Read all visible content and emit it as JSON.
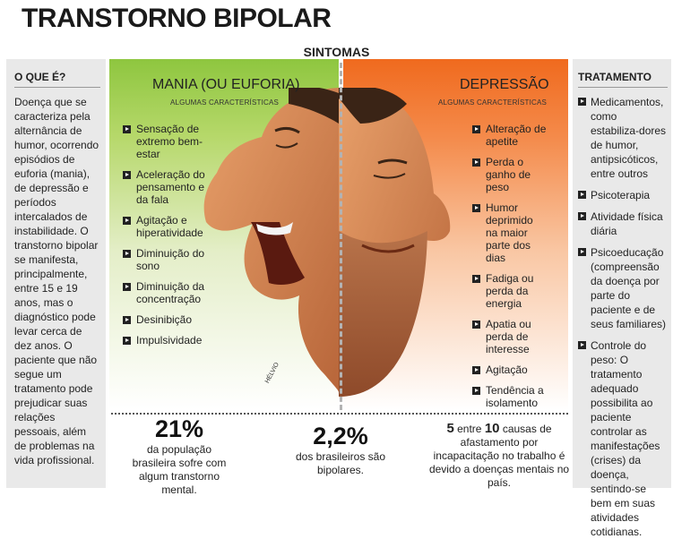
{
  "title": "TRANSTORNO BIPOLAR",
  "sintomas_label": "SINTOMAS",
  "left_panel": {
    "heading": "O QUE É?",
    "text": "Doença que se caracteriza pela alternância de humor, ocorrendo episódios de euforia (mania), de depressão e períodos intercalados de instabilidade. O transtorno bipolar se manifesta, principalmente, entre 15 e 19 anos, mas o diagnóstico pode levar cerca de dez anos. O paciente que não segue um tratamento pode prejudicar suas relações pessoais, além de problemas na vida profissional."
  },
  "mania": {
    "title": "MANIA (OU EUFORIA)",
    "subtitle": "ALGUMAS CARACTERÍSTICAS",
    "items": [
      "Sensação de extremo bem-estar",
      "Aceleração do pensamento e da fala",
      "Agitação e hiperatividade",
      "Diminuição do sono",
      "Diminuição da concentração",
      "Desinibição",
      "Impulsividade"
    ]
  },
  "depressao": {
    "title": "DEPRESSÃO",
    "subtitle": "ALGUMAS CARACTERÍSTICAS",
    "items": [
      "Alteração de apetite",
      "Perda o ganho de peso",
      "Humor deprimido na maior parte dos dias",
      "Fadiga ou perda da energia",
      "Apatia ou perda de interesse",
      "Agitação",
      "Tendência a isolamento"
    ]
  },
  "tratamento": {
    "heading": "TRATAMENTO",
    "items": [
      "Medicamentos, como estabiliza-dores de humor, antipsicóticos, entre outros",
      "Psicoterapia",
      "Atividade física diária",
      "Psicoeducação (compreensão da doença por parte do paciente e de seus familiares)",
      "Controle do peso: O tratamento adequado possibilita ao paciente controlar as manifestações (crises) da doença, sentindo-se bem em suas atividades cotidianas."
    ]
  },
  "credit": "HÉLVIO",
  "stats": {
    "s1_big": "21%",
    "s1_text": "da população brasileira sofre com algum transtorno mental.",
    "s2_big": "2,2%",
    "s2_text": "dos brasileiros são bipolares.",
    "s3_a": "5",
    "s3_mid": " entre ",
    "s3_b": "10",
    "s3_text": " causas de afastamento por incapacitação no trabalho é devido a doenças mentais no país."
  },
  "colors": {
    "mania_green": "#8ec63f",
    "depression_orange": "#f06a1e",
    "panel_gray": "#e9e9e9"
  },
  "illustration": "split-face-icon"
}
